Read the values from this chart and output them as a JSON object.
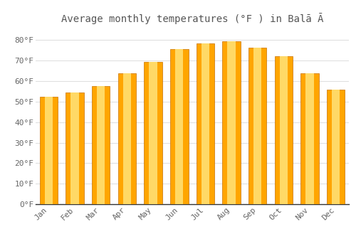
{
  "months": [
    "Jan",
    "Feb",
    "Mar",
    "Apr",
    "May",
    "Jun",
    "Jul",
    "Aug",
    "Sep",
    "Oct",
    "Nov",
    "Dec"
  ],
  "values": [
    52.5,
    54.5,
    57.5,
    64.0,
    69.5,
    75.5,
    78.5,
    79.5,
    76.5,
    72.0,
    64.0,
    56.0
  ],
  "title": "Average monthly temperatures (°F ) in Balā Ā",
  "ylabel_ticks": [
    "0°F",
    "10°F",
    "20°F",
    "30°F",
    "40°F",
    "50°F",
    "60°F",
    "70°F",
    "80°F"
  ],
  "ytick_values": [
    0,
    10,
    20,
    30,
    40,
    50,
    60,
    70,
    80
  ],
  "ylim": [
    0,
    85
  ],
  "background_color": "#ffffff",
  "grid_color": "#e0e0e0",
  "bar_color_main": "#FFA500",
  "bar_color_center": "#FFD966",
  "bar_color_edge": "#E08000",
  "title_fontsize": 10,
  "tick_fontsize": 8,
  "bar_width": 0.7
}
